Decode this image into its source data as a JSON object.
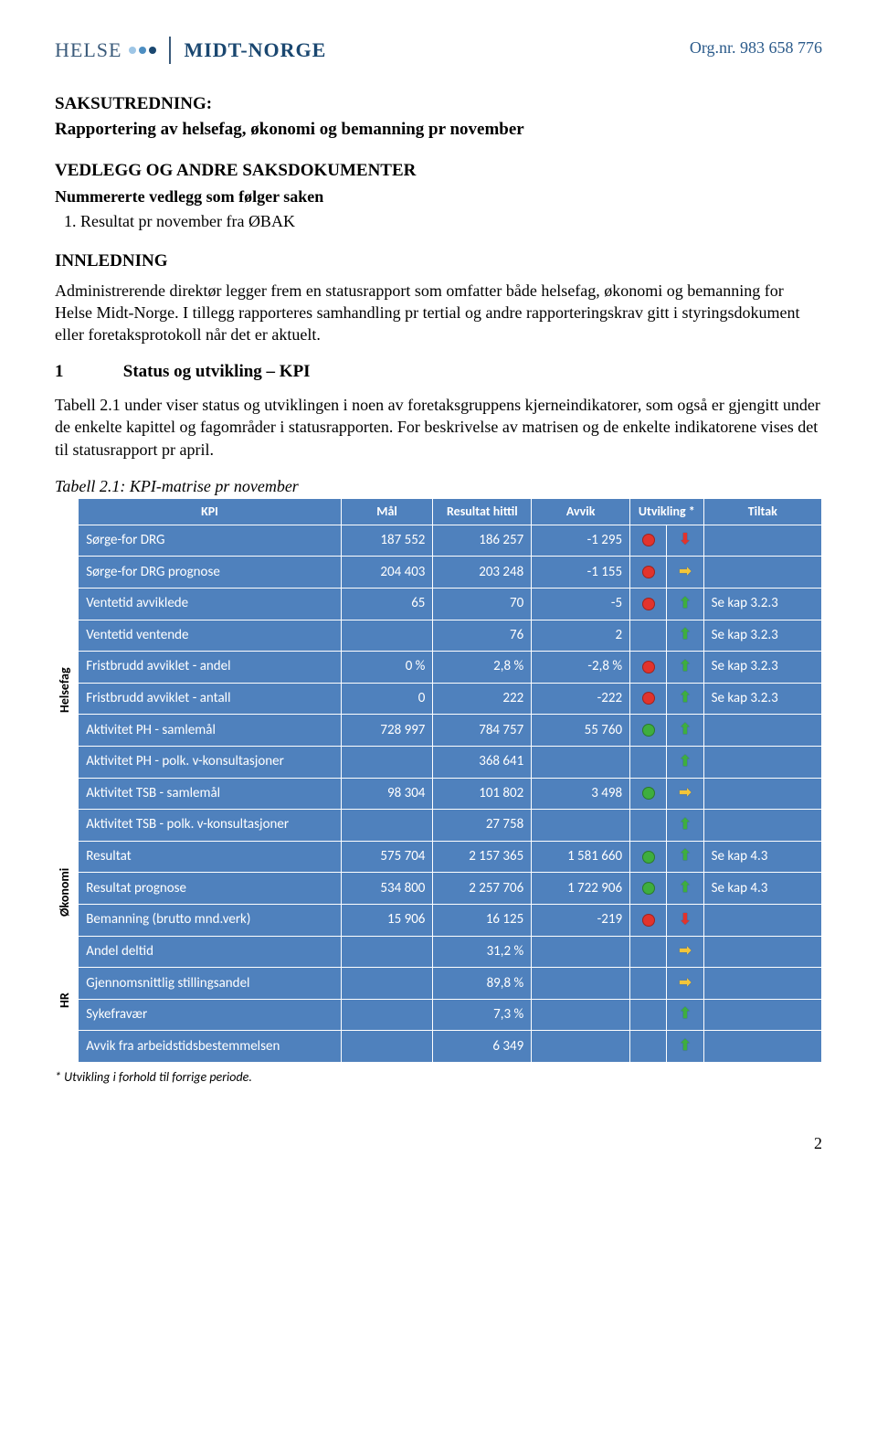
{
  "logo": {
    "left": "HELSE",
    "right": "MIDT-NORGE",
    "dot_colors": [
      "#9ec6e6",
      "#4d8ec2",
      "#1a4770"
    ]
  },
  "orgnr": "Org.nr. 983 658 776",
  "section": {
    "saks": "SAKSUTREDNING:",
    "subtitle": "Rapportering av helsefag, økonomi og bemanning pr november",
    "vedlegg": "VEDLEGG OG ANDRE SAKSDOKUMENTER",
    "vedlegg_sub": "Nummererte vedlegg som følger saken",
    "vedlegg_item": "Resultat pr november fra ØBAK",
    "innledning": "INNLEDNING",
    "p1": "Administrerende direktør legger frem en statusrapport som omfatter både helsefag, økonomi og bemanning for Helse Midt-Norge. I tillegg rapporteres samhandling pr tertial og andre rapporteringskrav gitt i styringsdokument eller foretaksprotokoll når det er aktuelt.",
    "sec1_num": "1",
    "sec1_title": "Status og utvikling – KPI",
    "p2": "Tabell 2.1 under viser status og utviklingen i noen av foretaksgruppens kjerneindikatorer, som også er gjengitt under de enkelte kapittel og fagområder i statusrapporten. For beskrivelse av matrisen og de enkelte indikatorene vises det til statusrapport pr april.",
    "tabcaption": "Tabell 2.1: KPI-matrise pr november"
  },
  "table": {
    "headers": {
      "kpi": "KPI",
      "mal": "Mål",
      "res": "Resultat hittil",
      "avv": "Avvik",
      "utv": "Utvikling *",
      "til": "Tiltak"
    },
    "groups": [
      {
        "label": "Helsefag",
        "rows": [
          {
            "kpi": "Sørge-for DRG",
            "mal": "187 552",
            "res": "186 257",
            "avv": "-1 295",
            "status": "red",
            "trend": "down-red",
            "til": ""
          },
          {
            "kpi": "Sørge-for  DRG  prognose",
            "mal": "204 403",
            "res": "203 248",
            "avv": "-1 155",
            "status": "red",
            "trend": "side-yellow",
            "til": ""
          },
          {
            "kpi": "Ventetid avviklede",
            "mal": "65",
            "res": "70",
            "avv": "-5",
            "status": "red",
            "trend": "up-green",
            "til": "Se kap 3.2.3"
          },
          {
            "kpi": "Ventetid ventende",
            "mal": "",
            "res": "76",
            "avv": "2",
            "status": "",
            "trend": "up-green",
            "til": "Se kap 3.2.3"
          },
          {
            "kpi": "Fristbrudd avviklet - andel",
            "mal": "0 %",
            "res": "2,8 %",
            "avv": "-2,8 %",
            "status": "red",
            "trend": "up-green",
            "til": "Se kap 3.2.3"
          },
          {
            "kpi": "Fristbrudd avviklet - antall",
            "mal": "0",
            "res": "222",
            "avv": "-222",
            "status": "red",
            "trend": "up-green",
            "til": "Se kap 3.2.3"
          },
          {
            "kpi": "Aktivitet PH  - samlemål",
            "mal": "728 997",
            "res": "784 757",
            "avv": "55 760",
            "status": "green",
            "trend": "up-green",
            "til": ""
          },
          {
            "kpi": "Aktivitet PH  - polk. v-konsultasjoner",
            "mal": "",
            "res": "368 641",
            "avv": "",
            "status": "",
            "trend": "up-green",
            "til": ""
          },
          {
            "kpi": "Aktivitet TSB  - samlemål",
            "mal": "98 304",
            "res": "101 802",
            "avv": "3 498",
            "status": "green",
            "trend": "side-yellow",
            "til": ""
          },
          {
            "kpi": "Aktivitet TSB  - polk. v-konsultasjoner",
            "mal": "",
            "res": "27 758",
            "avv": "",
            "status": "",
            "trend": "up-green",
            "til": ""
          }
        ]
      },
      {
        "label": "Økonomi",
        "rows": [
          {
            "kpi": "Resultat",
            "mal": "575 704",
            "res": "2 157 365",
            "avv": "1 581 660",
            "status": "green",
            "trend": "up-green",
            "til": "Se kap 4.3"
          },
          {
            "kpi": "Resultat prognose",
            "mal": "534 800",
            "res": "2 257 706",
            "avv": "1 722 906",
            "status": "green",
            "trend": "up-green",
            "til": "Se kap 4.3"
          },
          {
            "kpi": "Bemanning (brutto mnd.verk)",
            "mal": "15 906",
            "res": "16 125",
            "avv": "-219",
            "status": "red",
            "trend": "down-red",
            "til": ""
          }
        ]
      },
      {
        "label": "HR",
        "rows": [
          {
            "kpi": "Andel deltid",
            "mal": "",
            "res": "31,2 %",
            "avv": "",
            "status": "",
            "trend": "side-yellow",
            "til": ""
          },
          {
            "kpi": "Gjennomsnittlig stillingsandel",
            "mal": "",
            "res": "89,8 %",
            "avv": "",
            "status": "",
            "trend": "side-yellow",
            "til": ""
          },
          {
            "kpi": "Sykefravær",
            "mal": "",
            "res": "7,3 %",
            "avv": "",
            "status": "",
            "trend": "up-green",
            "til": ""
          },
          {
            "kpi": "Avvik fra arbeidstidsbestemmelsen",
            "mal": "",
            "res": "6 349",
            "avv": "",
            "status": "",
            "trend": "up-green",
            "til": ""
          }
        ]
      }
    ]
  },
  "colors": {
    "table_bg": "#4f81bd",
    "status_red": "#e2332c",
    "status_green": "#3eae3e",
    "trend_green": "#3eae3e",
    "trend_red": "#e2332c",
    "trend_yellow": "#f2c53a"
  },
  "footnote": "* Utvikling i forhold til forrige periode.",
  "pagenum": "2"
}
